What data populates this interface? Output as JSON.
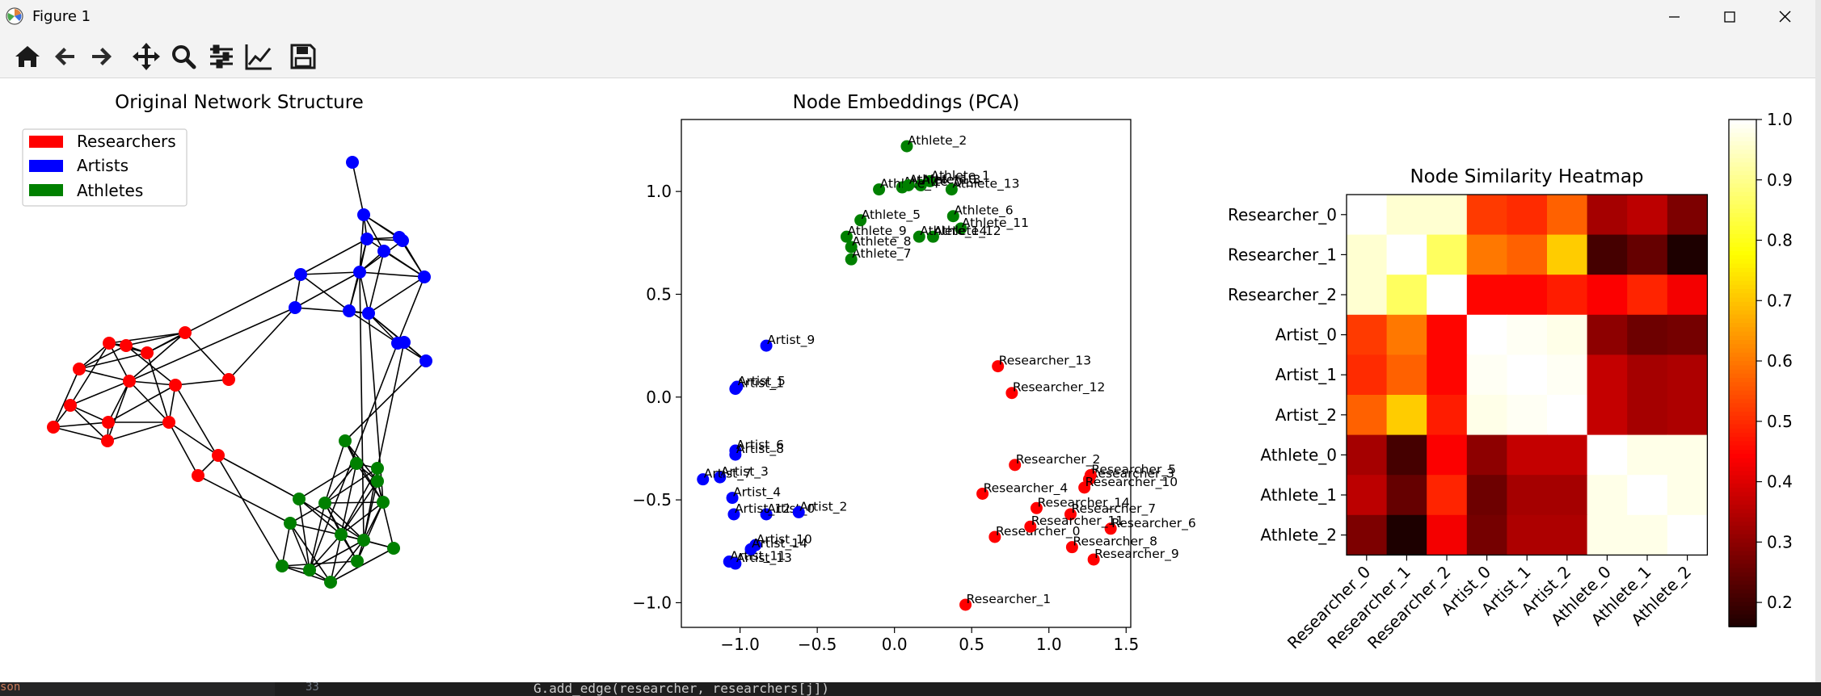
{
  "window": {
    "title": "Figure 1"
  },
  "toolbar": {
    "buttons": [
      {
        "name": "home-button",
        "icon": "home-icon"
      },
      {
        "name": "back-button",
        "icon": "arrow-left-icon"
      },
      {
        "name": "forward-button",
        "icon": "arrow-right-icon"
      },
      {
        "name": "pan-button",
        "icon": "move-icon"
      },
      {
        "name": "zoom-button",
        "icon": "search-icon"
      },
      {
        "name": "subplots-button",
        "icon": "sliders-icon"
      },
      {
        "name": "edit-axis-button",
        "icon": "line-chart-icon"
      },
      {
        "name": "save-button",
        "icon": "floppy-disk-icon"
      }
    ]
  },
  "editor_strip": {
    "left_fragment": "son",
    "line_number": "33",
    "code": "G.add_edge(researcher, researchers[j])"
  },
  "colors": {
    "researchers": "#ff0000",
    "artists": "#0000ff",
    "athletes": "#008000",
    "edge": "#000000"
  },
  "chart_data": [
    {
      "type": "network",
      "title": "Original Network Structure",
      "legend": {
        "position": "top-left",
        "entries": [
          {
            "label": "Researchers",
            "color": "#ff0000"
          },
          {
            "label": "Artists",
            "color": "#0000ff"
          },
          {
            "label": "Athletes",
            "color": "#008000"
          }
        ]
      },
      "axes_visible": false
    },
    {
      "type": "scatter",
      "title": "Node Embeddings (PCA)",
      "xlim": [
        -1.38,
        1.53
      ],
      "ylim": [
        -1.12,
        1.35
      ],
      "xticks": [
        "−1.0",
        "−0.5",
        "0.0",
        "0.5",
        "1.0",
        "1.5"
      ],
      "xtick_values": [
        -1.0,
        -0.5,
        0.0,
        0.5,
        1.0,
        1.5
      ],
      "yticks": [
        "−1.0",
        "−0.5",
        "0.0",
        "0.5",
        "1.0"
      ],
      "ytick_values": [
        -1.0,
        -0.5,
        0.0,
        0.5,
        1.0
      ],
      "series": [
        {
          "group": "researchers",
          "color": "#ff0000",
          "points": [
            {
              "label": "Researcher_0",
              "x": 0.65,
              "y": -0.68
            },
            {
              "label": "Researcher_1",
              "x": 0.46,
              "y": -1.01
            },
            {
              "label": "Researcher_2",
              "x": 0.78,
              "y": -0.33
            },
            {
              "label": "Researcher_3",
              "x": 1.26,
              "y": -0.4
            },
            {
              "label": "Researcher_4",
              "x": 0.57,
              "y": -0.47
            },
            {
              "label": "Researcher_5",
              "x": 1.27,
              "y": -0.38
            },
            {
              "label": "Researcher_6",
              "x": 1.4,
              "y": -0.64
            },
            {
              "label": "Researcher_7",
              "x": 1.14,
              "y": -0.57
            },
            {
              "label": "Researcher_8",
              "x": 1.15,
              "y": -0.73
            },
            {
              "label": "Researcher_9",
              "x": 1.29,
              "y": -0.79
            },
            {
              "label": "Researcher_10",
              "x": 1.23,
              "y": -0.44
            },
            {
              "label": "Researcher_11",
              "x": 0.88,
              "y": -0.63
            },
            {
              "label": "Researcher_12",
              "x": 0.76,
              "y": 0.02
            },
            {
              "label": "Researcher_13",
              "x": 0.67,
              "y": 0.15
            },
            {
              "label": "Researcher_14",
              "x": 0.92,
              "y": -0.54
            }
          ]
        },
        {
          "group": "artists",
          "color": "#0000ff",
          "points": [
            {
              "label": "Artist_0",
              "x": -0.83,
              "y": -0.57
            },
            {
              "label": "Artist_1",
              "x": -1.03,
              "y": 0.04
            },
            {
              "label": "Artist_2",
              "x": -0.62,
              "y": -0.56
            },
            {
              "label": "Artist_3",
              "x": -1.13,
              "y": -0.39
            },
            {
              "label": "Artist_4",
              "x": -1.05,
              "y": -0.49
            },
            {
              "label": "Artist_5",
              "x": -1.02,
              "y": 0.05
            },
            {
              "label": "Artist_6",
              "x": -1.03,
              "y": -0.26
            },
            {
              "label": "Artist_7",
              "x": -1.24,
              "y": -0.4
            },
            {
              "label": "Artist_8",
              "x": -1.03,
              "y": -0.28
            },
            {
              "label": "Artist_9",
              "x": -0.83,
              "y": 0.25
            },
            {
              "label": "Artist_10",
              "x": -0.9,
              "y": -0.72
            },
            {
              "label": "Artist_11",
              "x": -1.07,
              "y": -0.8
            },
            {
              "label": "Artist_12",
              "x": -1.04,
              "y": -0.57
            },
            {
              "label": "Artist_13",
              "x": -1.03,
              "y": -0.81
            },
            {
              "label": "Artist_14",
              "x": -0.93,
              "y": -0.74
            }
          ]
        },
        {
          "group": "athletes",
          "color": "#008000",
          "points": [
            {
              "label": "Athlete_0",
              "x": 0.05,
              "y": 1.02
            },
            {
              "label": "Athlete_1",
              "x": 0.23,
              "y": 1.05
            },
            {
              "label": "Athlete_2",
              "x": 0.08,
              "y": 1.22
            },
            {
              "label": "Athlete_3",
              "x": 0.17,
              "y": 1.03
            },
            {
              "label": "Athlete_4",
              "x": -0.1,
              "y": 1.01
            },
            {
              "label": "Athlete_5",
              "x": -0.22,
              "y": 0.86
            },
            {
              "label": "Athlete_6",
              "x": 0.38,
              "y": 0.88
            },
            {
              "label": "Athlete_7",
              "x": -0.28,
              "y": 0.67
            },
            {
              "label": "Athlete_8",
              "x": -0.28,
              "y": 0.73
            },
            {
              "label": "Athlete_9",
              "x": -0.31,
              "y": 0.78
            },
            {
              "label": "Athlete_10",
              "x": 0.09,
              "y": 1.03
            },
            {
              "label": "Athlete_11",
              "x": 0.43,
              "y": 0.82
            },
            {
              "label": "Athlete_12",
              "x": 0.25,
              "y": 0.78
            },
            {
              "label": "Athlete_13",
              "x": 0.37,
              "y": 1.01
            },
            {
              "label": "Athlete_14",
              "x": 0.16,
              "y": 0.78
            }
          ]
        }
      ]
    },
    {
      "type": "heatmap",
      "title": "Node Similarity Heatmap",
      "row_labels": [
        "Researcher_0",
        "Researcher_1",
        "Researcher_2",
        "Artist_0",
        "Artist_1",
        "Artist_2",
        "Athlete_0",
        "Athlete_1",
        "Athlete_2"
      ],
      "col_labels": [
        "Researcher_0",
        "Researcher_1",
        "Researcher_2",
        "Artist_0",
        "Artist_1",
        "Artist_2",
        "Athlete_0",
        "Athlete_1",
        "Athlete_2"
      ],
      "values": [
        [
          1.0,
          0.96,
          0.96,
          0.52,
          0.5,
          0.57,
          0.33,
          0.36,
          0.28
        ],
        [
          0.96,
          1.0,
          0.86,
          0.6,
          0.57,
          0.71,
          0.21,
          0.25,
          0.16
        ],
        [
          0.96,
          0.86,
          1.0,
          0.45,
          0.45,
          0.48,
          0.44,
          0.49,
          0.43
        ],
        [
          0.52,
          0.6,
          0.45,
          1.0,
          0.99,
          0.98,
          0.3,
          0.26,
          0.27
        ],
        [
          0.5,
          0.57,
          0.45,
          0.99,
          1.0,
          0.99,
          0.37,
          0.33,
          0.34
        ],
        [
          0.57,
          0.71,
          0.48,
          0.98,
          0.99,
          1.0,
          0.37,
          0.33,
          0.34
        ],
        [
          0.33,
          0.21,
          0.44,
          0.3,
          0.37,
          0.37,
          1.0,
          0.98,
          0.98
        ],
        [
          0.36,
          0.25,
          0.49,
          0.26,
          0.33,
          0.33,
          0.98,
          1.0,
          0.98
        ],
        [
          0.28,
          0.16,
          0.43,
          0.27,
          0.34,
          0.34,
          0.98,
          0.98,
          1.0
        ]
      ],
      "colormap": "hot",
      "vmin": 0.16,
      "vmax": 1.0,
      "colorbar_ticks": [
        "0.2",
        "0.3",
        "0.4",
        "0.5",
        "0.6",
        "0.7",
        "0.8",
        "0.9",
        "1.0"
      ],
      "colorbar_tick_values": [
        0.2,
        0.3,
        0.4,
        0.5,
        0.6,
        0.7,
        0.8,
        0.9,
        1.0
      ]
    }
  ]
}
